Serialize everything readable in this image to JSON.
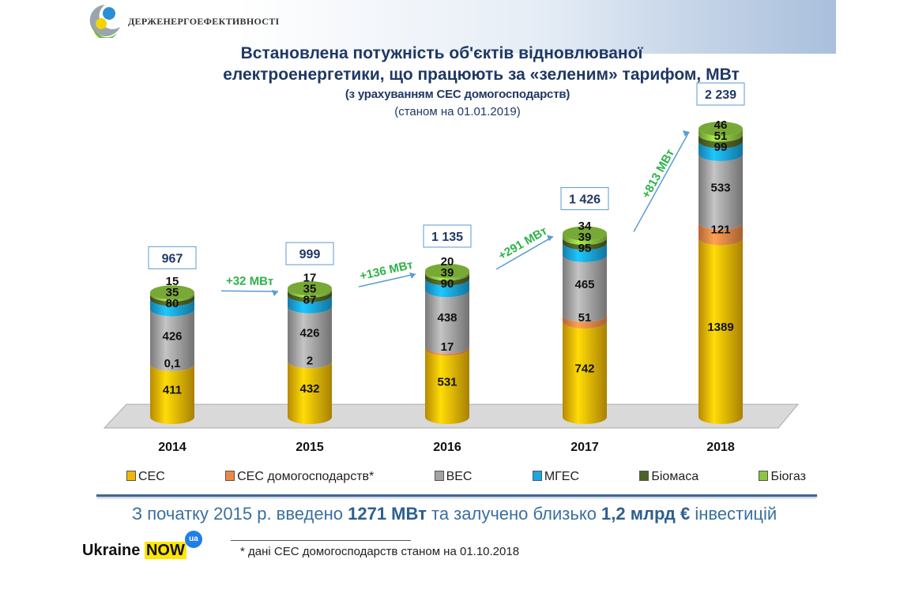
{
  "header": {
    "org": "ДЕРЖЕНЕРГОЕФЕКТИВНОСТІ"
  },
  "chart_data": {
    "type": "bar",
    "stacked": true,
    "title": "Встановлена потужність об'єктів відновлюваної електроенергетики, що працюють за «зеленим» тарифом, МВт",
    "title_line1": "Встановлена потужність об'єктів відновлюваної",
    "title_line2": "електроенергетики, що працюють за «зеленим» тарифом, МВт",
    "subtitle": "(з урахуванням СЕС домогосподарств)",
    "date_note": "(станом на 01.01.2019)",
    "categories": [
      "2014",
      "2015",
      "2016",
      "2017",
      "2018"
    ],
    "series": [
      {
        "name": "СЕС",
        "color": "#F2B705",
        "values": [
          411,
          432,
          531,
          742,
          1389
        ],
        "labels": [
          "411",
          "432",
          "531",
          "742",
          "1389"
        ]
      },
      {
        "name": "СЕС домогосподарств*",
        "color": "#EE8746",
        "values": [
          0.1,
          2,
          17,
          51,
          121
        ],
        "labels": [
          "0,1",
          "2",
          "17",
          "51",
          "121"
        ]
      },
      {
        "name": "ВЕС",
        "color": "#A3A3A3",
        "values": [
          426,
          426,
          438,
          465,
          533
        ],
        "labels": [
          "426",
          "426",
          "438",
          "465",
          "533"
        ]
      },
      {
        "name": "МГЕС",
        "color": "#1AA6E2",
        "values": [
          80,
          87,
          90,
          95,
          99
        ],
        "labels": [
          "80",
          "87",
          "90",
          "95",
          "99"
        ]
      },
      {
        "name": "Біомаса",
        "color": "#4D6326",
        "values": [
          35,
          35,
          39,
          39,
          51
        ],
        "labels": [
          "35",
          "35",
          "39",
          "39",
          "51"
        ]
      },
      {
        "name": "Біогаз",
        "color": "#8DC63F",
        "values": [
          15,
          17,
          20,
          34,
          46
        ],
        "labels": [
          "15",
          "17",
          "20",
          "34",
          "46"
        ]
      }
    ],
    "totals": [
      "967",
      "999",
      "1 135",
      "1 426",
      "2 239"
    ],
    "growth": [
      "+32 МВт",
      "+136 МВт",
      "+291 МВт",
      "+813 МВт"
    ],
    "legend_position": "bottom"
  },
  "summary": {
    "p1": "З початку 2015 р. введено ",
    "b1": "1271 МВт",
    "p2": " та залучено  близько  ",
    "b2": "1,2 млрд €",
    "p3": " інвестицій"
  },
  "footer": {
    "brand1": "Ukraine ",
    "brand2": "NOW",
    "brand_badge": "ua",
    "footnote": "* дані СЕС домогосподарств станом на 01.10.2018"
  }
}
